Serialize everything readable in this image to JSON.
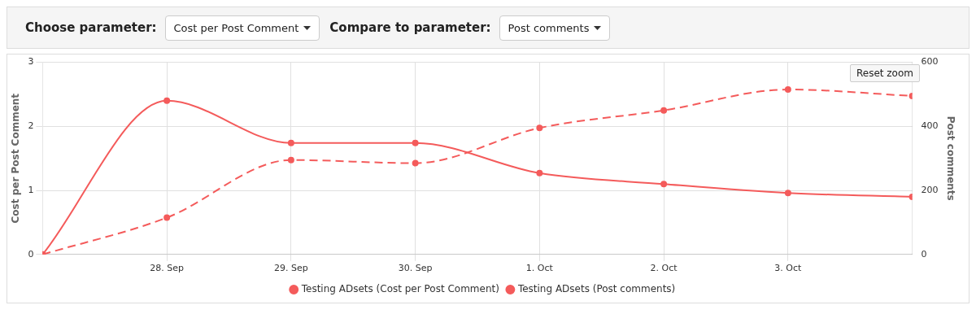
{
  "chart_data": {
    "type": "line",
    "xlabel": null,
    "ylabel": "Cost per Post Comment",
    "y2label": "Post comments",
    "x": [
      "--09-27",
      "--09-28",
      "--09-29",
      "--09-30",
      "--10-01",
      "--10-02",
      "--10-03",
      "--10-04"
    ],
    "xlim": [
      "--09-27",
      "--10-04"
    ],
    "xticks": [
      {
        "value": "--09-28",
        "label": "28. Sep"
      },
      {
        "value": "--09-29",
        "label": "29. Sep"
      },
      {
        "value": "--09-30",
        "label": "30. Sep"
      },
      {
        "value": "--10-01",
        "label": "1. Oct"
      },
      {
        "value": "--10-02",
        "label": "2. Oct"
      },
      {
        "value": "--10-03",
        "label": "3. Oct"
      }
    ],
    "ylim": [
      0,
      3
    ],
    "yticks": [
      0,
      1,
      2,
      3
    ],
    "y2lim": [
      0,
      600
    ],
    "y2ticks": [
      0,
      200,
      400,
      600
    ],
    "series": [
      {
        "name": "Testing ADsets (Cost per Post Comment)",
        "color": "#f45b5b",
        "line_style": "solid",
        "values": [
          0,
          2.4,
          1.74,
          1.74,
          1.27,
          1.1,
          0.96,
          0.9
        ]
      },
      {
        "name": "Testing ADsets (Post comments)",
        "color": "#f45b5b",
        "line_style": "dashed",
        "axis": "y2",
        "values": [
          0,
          115,
          295,
          285,
          395,
          450,
          515,
          495
        ]
      }
    ],
    "marker": "circle",
    "grid": true,
    "legend": "bottom",
    "annotations": [
      "Choose parameter:",
      "Cost per Post Comment",
      "Compare to parameter:",
      "Post comments",
      "Reset zoom"
    ]
  }
}
